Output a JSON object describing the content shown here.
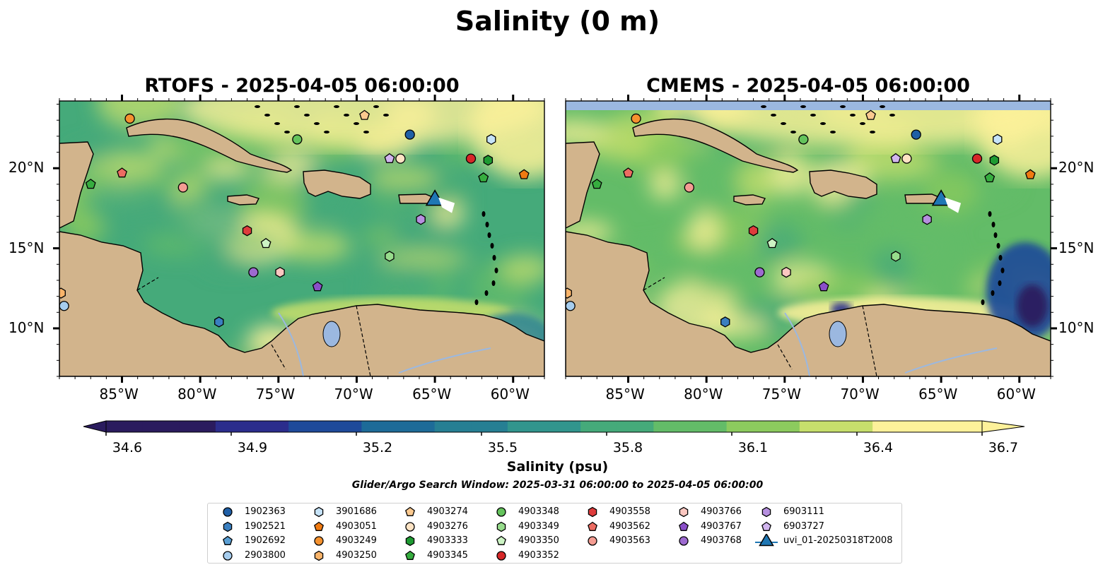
{
  "figure": {
    "title": "Salinity (0 m)",
    "window_note": "Glider/Argo Search Window: 2025-03-31 06:00:00 to 2025-04-05 06:00:00"
  },
  "panels": [
    {
      "id": "rtofs",
      "title": "RTOFS - 2025-04-05 06:00:00"
    },
    {
      "id": "cmems",
      "title": "CMEMS - 2025-04-05 06:00:00"
    }
  ],
  "axes": {
    "lon_ticks": [
      "85°W",
      "80°W",
      "75°W",
      "70°W",
      "65°W",
      "60°W"
    ],
    "lon_values": [
      -85,
      -80,
      -75,
      -70,
      -65,
      -60
    ],
    "lat_ticks": [
      "10°N",
      "15°N",
      "20°N"
    ],
    "lat_values": [
      10,
      15,
      20
    ],
    "lon_range": [
      -89,
      -58
    ],
    "lat_range": [
      7,
      24.2
    ]
  },
  "colorbar": {
    "label": "Salinity (psu)",
    "ticks": [
      "34.6",
      "34.9",
      "35.2",
      "35.5",
      "35.8",
      "36.1",
      "36.4",
      "36.7"
    ],
    "tick_values": [
      34.6,
      34.9,
      35.2,
      35.5,
      35.8,
      36.1,
      36.4,
      36.7
    ],
    "range": [
      34.6,
      36.7
    ],
    "colormap": [
      "#2a1b5e",
      "#2b2d8c",
      "#1e4a9a",
      "#1d6b98",
      "#267f93",
      "#31958d",
      "#45aa7a",
      "#63bc68",
      "#8ccb5e",
      "#c7df6c",
      "#fdf19a"
    ],
    "extend": "both"
  },
  "legend": {
    "items": [
      {
        "label": "1902363",
        "marker": "circle",
        "color": "#1f5fa6"
      },
      {
        "label": "1902521",
        "marker": "hexagon",
        "color": "#3a7fc0"
      },
      {
        "label": "1902692",
        "marker": "pentagon",
        "color": "#5a9fd4"
      },
      {
        "label": "2903800",
        "marker": "circle",
        "color": "#a6cdee"
      },
      {
        "label": "3901686",
        "marker": "hexagon",
        "color": "#c6e3f8"
      },
      {
        "label": "4903051",
        "marker": "pentagon",
        "color": "#f07a12"
      },
      {
        "label": "4903249",
        "marker": "circle",
        "color": "#f5922f"
      },
      {
        "label": "4903250",
        "marker": "hexagon",
        "color": "#f9b46a"
      },
      {
        "label": "4903274",
        "marker": "pentagon",
        "color": "#fbc98f"
      },
      {
        "label": "4903276",
        "marker": "circle",
        "color": "#fde3c4"
      },
      {
        "label": "4903333",
        "marker": "hexagon",
        "color": "#1e9a32"
      },
      {
        "label": "4903345",
        "marker": "pentagon",
        "color": "#36ad3f"
      },
      {
        "label": "4903348",
        "marker": "circle",
        "color": "#64c35c"
      },
      {
        "label": "4903349",
        "marker": "hexagon",
        "color": "#97dc8c"
      },
      {
        "label": "4903350",
        "marker": "pentagon",
        "color": "#ccf3c4"
      },
      {
        "label": "4903352",
        "marker": "circle",
        "color": "#d62728"
      },
      {
        "label": "4903558",
        "marker": "hexagon",
        "color": "#de3c3c"
      },
      {
        "label": "4903562",
        "marker": "pentagon",
        "color": "#ec6c62"
      },
      {
        "label": "4903563",
        "marker": "circle",
        "color": "#f49c92"
      },
      {
        "label": "4903766",
        "marker": "hexagon",
        "color": "#fbc7c0"
      },
      {
        "label": "4903767",
        "marker": "pentagon",
        "color": "#8a4fc8"
      },
      {
        "label": "4903768",
        "marker": "circle",
        "color": "#9d6ad0"
      },
      {
        "label": "6903111",
        "marker": "hexagon",
        "color": "#b68fdf"
      },
      {
        "label": "6903727",
        "marker": "pentagon",
        "color": "#d1b5ee"
      },
      {
        "label": "uvi_01-20250318T2008",
        "marker": "triangle",
        "color": "#1f77b4"
      }
    ]
  },
  "stations": [
    {
      "id": "1902363",
      "lon": -66.6,
      "lat": 22.1
    },
    {
      "id": "1902521",
      "lon": -78.8,
      "lat": 10.4
    },
    {
      "id": "2903800",
      "lon": -88.7,
      "lat": 11.4
    },
    {
      "id": "3901686",
      "lon": -61.4,
      "lat": 21.8
    },
    {
      "id": "4903051",
      "lon": -59.3,
      "lat": 19.6
    },
    {
      "id": "4903249",
      "lon": -84.5,
      "lat": 23.1
    },
    {
      "id": "4903250",
      "lon": -88.9,
      "lat": 12.2
    },
    {
      "id": "4903274",
      "lon": -69.5,
      "lat": 23.3
    },
    {
      "id": "4903276",
      "lon": -67.2,
      "lat": 20.6
    },
    {
      "id": "4903333",
      "lon": -61.6,
      "lat": 20.5
    },
    {
      "id": "4903345",
      "lon": -61.9,
      "lat": 19.4
    },
    {
      "id": "4903348",
      "lon": -73.8,
      "lat": 21.8
    },
    {
      "id": "4903349",
      "lon": -67.9,
      "lat": 14.5
    },
    {
      "id": "4903350",
      "lon": -75.8,
      "lat": 15.3
    },
    {
      "id": "4903352",
      "lon": -62.7,
      "lat": 20.6
    },
    {
      "id": "4903558",
      "lon": -77.0,
      "lat": 16.1
    },
    {
      "id": "4903562",
      "lon": -85.0,
      "lat": 19.7
    },
    {
      "id": "4903563",
      "lon": -81.1,
      "lat": 18.8
    },
    {
      "id": "4903766",
      "lon": -74.9,
      "lat": 13.5
    },
    {
      "id": "4903767",
      "lon": -72.5,
      "lat": 12.6
    },
    {
      "id": "4903768",
      "lon": -76.6,
      "lat": 13.5
    },
    {
      "id": "6903111",
      "lon": -65.9,
      "lat": 16.8
    },
    {
      "id": "6903727",
      "lon": -67.9,
      "lat": 20.6
    },
    {
      "id": "4903345b",
      "lon": -87.0,
      "lat": 19.0
    },
    {
      "id": "uvi_01-20250318T2008",
      "lon": -65.0,
      "lat": 18.0
    }
  ]
}
